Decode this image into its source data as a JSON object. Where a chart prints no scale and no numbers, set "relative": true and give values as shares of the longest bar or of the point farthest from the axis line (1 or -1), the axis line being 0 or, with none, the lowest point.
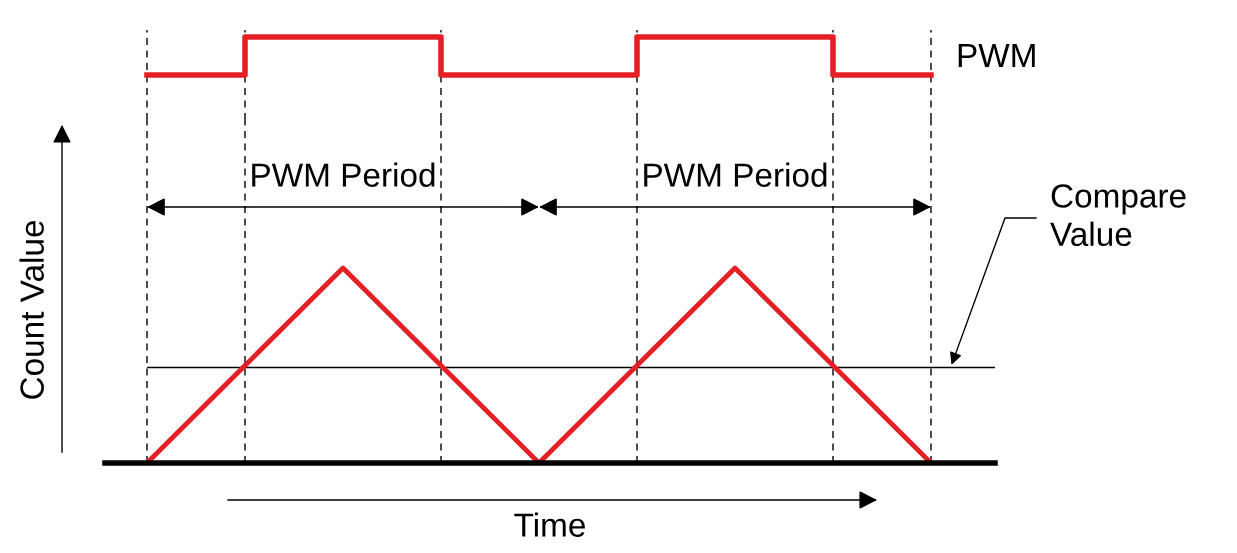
{
  "chart_data": [
    {
      "type": "step",
      "relative": true,
      "categories": [
        null,
        null,
        null,
        null,
        null,
        null,
        null,
        null,
        null
      ],
      "grid": "x",
      "legend": false,
      "marker": "none",
      "line_style": "solid",
      "series": [
        {
          "name": "PWM",
          "color": "#e41f26",
          "values": [
            0,
            1,
            1,
            0,
            0,
            1,
            1,
            0,
            0
          ]
        }
      ]
    },
    {
      "type": "line",
      "relative": true,
      "categories": [
        null,
        null,
        null,
        null,
        null,
        null,
        null,
        null,
        null
      ],
      "grid": "x",
      "legend": false,
      "marker": "none",
      "line_style": "solid",
      "xlabel": "Time",
      "ylabel": "Count Value",
      "series": [
        {
          "color": "#e41f26",
          "values": [
            0,
            0.5,
            1,
            0.5,
            0,
            0.5,
            1,
            0.5,
            0
          ]
        }
      ],
      "annotations": [
        "PWM Period",
        "PWM Period"
      ],
      "ref_lines": [
        {
          "axis": "y",
          "value": 0.49,
          "label": "Compare Value",
          "color": "#000000",
          "line_style": "solid"
        }
      ]
    }
  ]
}
